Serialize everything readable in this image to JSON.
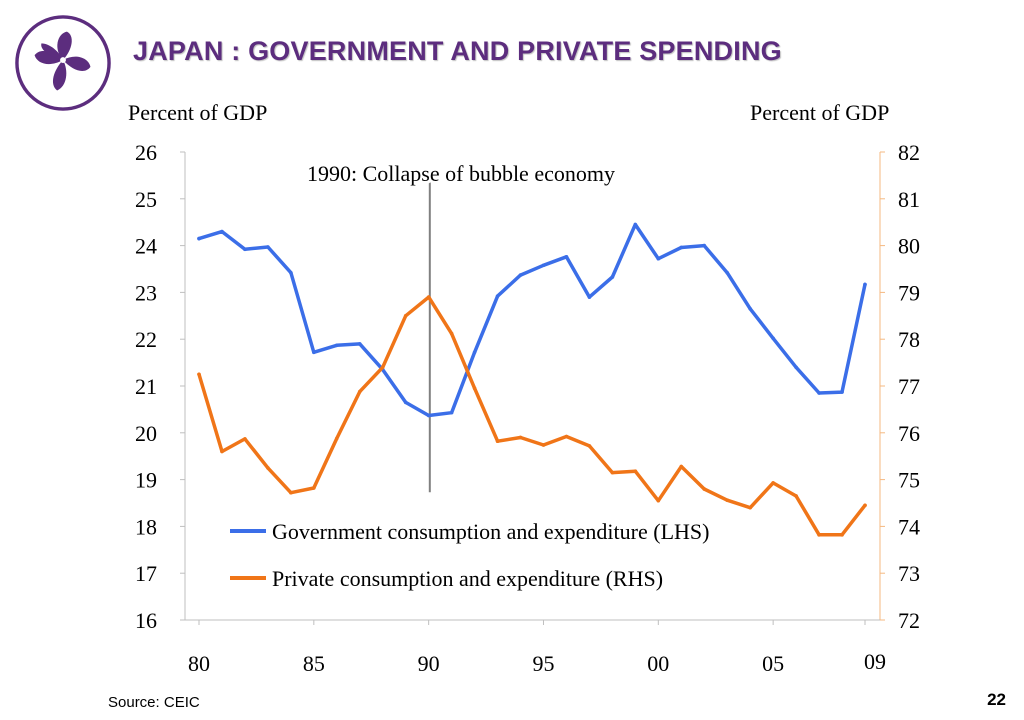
{
  "slide": {
    "title": "JAPAN : GOVERNMENT AND PRIVATE SPENDING",
    "source": "Source: CEIC",
    "page_number": "22",
    "logo_icon": "bauhinia-flower-logo",
    "colors": {
      "title": "#5c2d7e",
      "logo": "#5c2d7e"
    }
  },
  "chart_data": {
    "type": "line",
    "title": "",
    "ylabel_left": "Percent of GDP",
    "ylabel_right": "Percent of GDP",
    "x": [
      1980,
      1981,
      1982,
      1983,
      1984,
      1985,
      1986,
      1987,
      1988,
      1989,
      1990,
      1991,
      1992,
      1993,
      1994,
      1995,
      1996,
      1997,
      1998,
      1999,
      2000,
      2001,
      2002,
      2003,
      2004,
      2005,
      2006,
      2007,
      2008,
      2009
    ],
    "x_tick_values": [
      1980,
      1985,
      1990,
      1995,
      2000,
      2005,
      2009
    ],
    "x_tick_labels": [
      "80",
      "85",
      "90",
      "95",
      "00",
      "05",
      "09"
    ],
    "ylim_left": [
      16,
      26
    ],
    "y_ticks_left": [
      16,
      17,
      18,
      19,
      20,
      21,
      22,
      23,
      24,
      25,
      26
    ],
    "ylim_right": [
      72,
      82
    ],
    "y_ticks_right": [
      72,
      73,
      74,
      75,
      76,
      77,
      78,
      79,
      80,
      81,
      82
    ],
    "grid": false,
    "legend_position": "bottom-center",
    "series": [
      {
        "name": "Government consumption and expenditure (LHS)",
        "axis": "left",
        "color": "#3b6ee8",
        "values": [
          24.15,
          24.3,
          23.92,
          23.97,
          23.42,
          21.72,
          21.87,
          21.9,
          21.35,
          20.65,
          20.37,
          20.43,
          21.72,
          22.92,
          23.37,
          23.58,
          23.76,
          22.9,
          23.33,
          24.45,
          23.72,
          23.96,
          24.0,
          23.42,
          22.65,
          22.02,
          21.4,
          20.85,
          20.87,
          23.17
        ]
      },
      {
        "name": "Private consumption and expenditure (RHS)",
        "axis": "right",
        "color": "#f07518",
        "values": [
          77.25,
          75.6,
          75.87,
          75.25,
          74.72,
          74.82,
          75.88,
          76.88,
          77.4,
          78.5,
          78.9,
          78.12,
          76.95,
          75.82,
          75.9,
          75.74,
          75.92,
          75.72,
          75.15,
          75.18,
          74.55,
          75.28,
          74.8,
          74.56,
          74.4,
          74.93,
          74.65,
          73.82,
          73.82,
          74.45
        ]
      }
    ],
    "annotations": [
      {
        "text": "1990: Collapse of bubble economy",
        "x": 1990.05,
        "line_from": 82,
        "line_to": 74.73,
        "line_axis": "right"
      }
    ]
  }
}
